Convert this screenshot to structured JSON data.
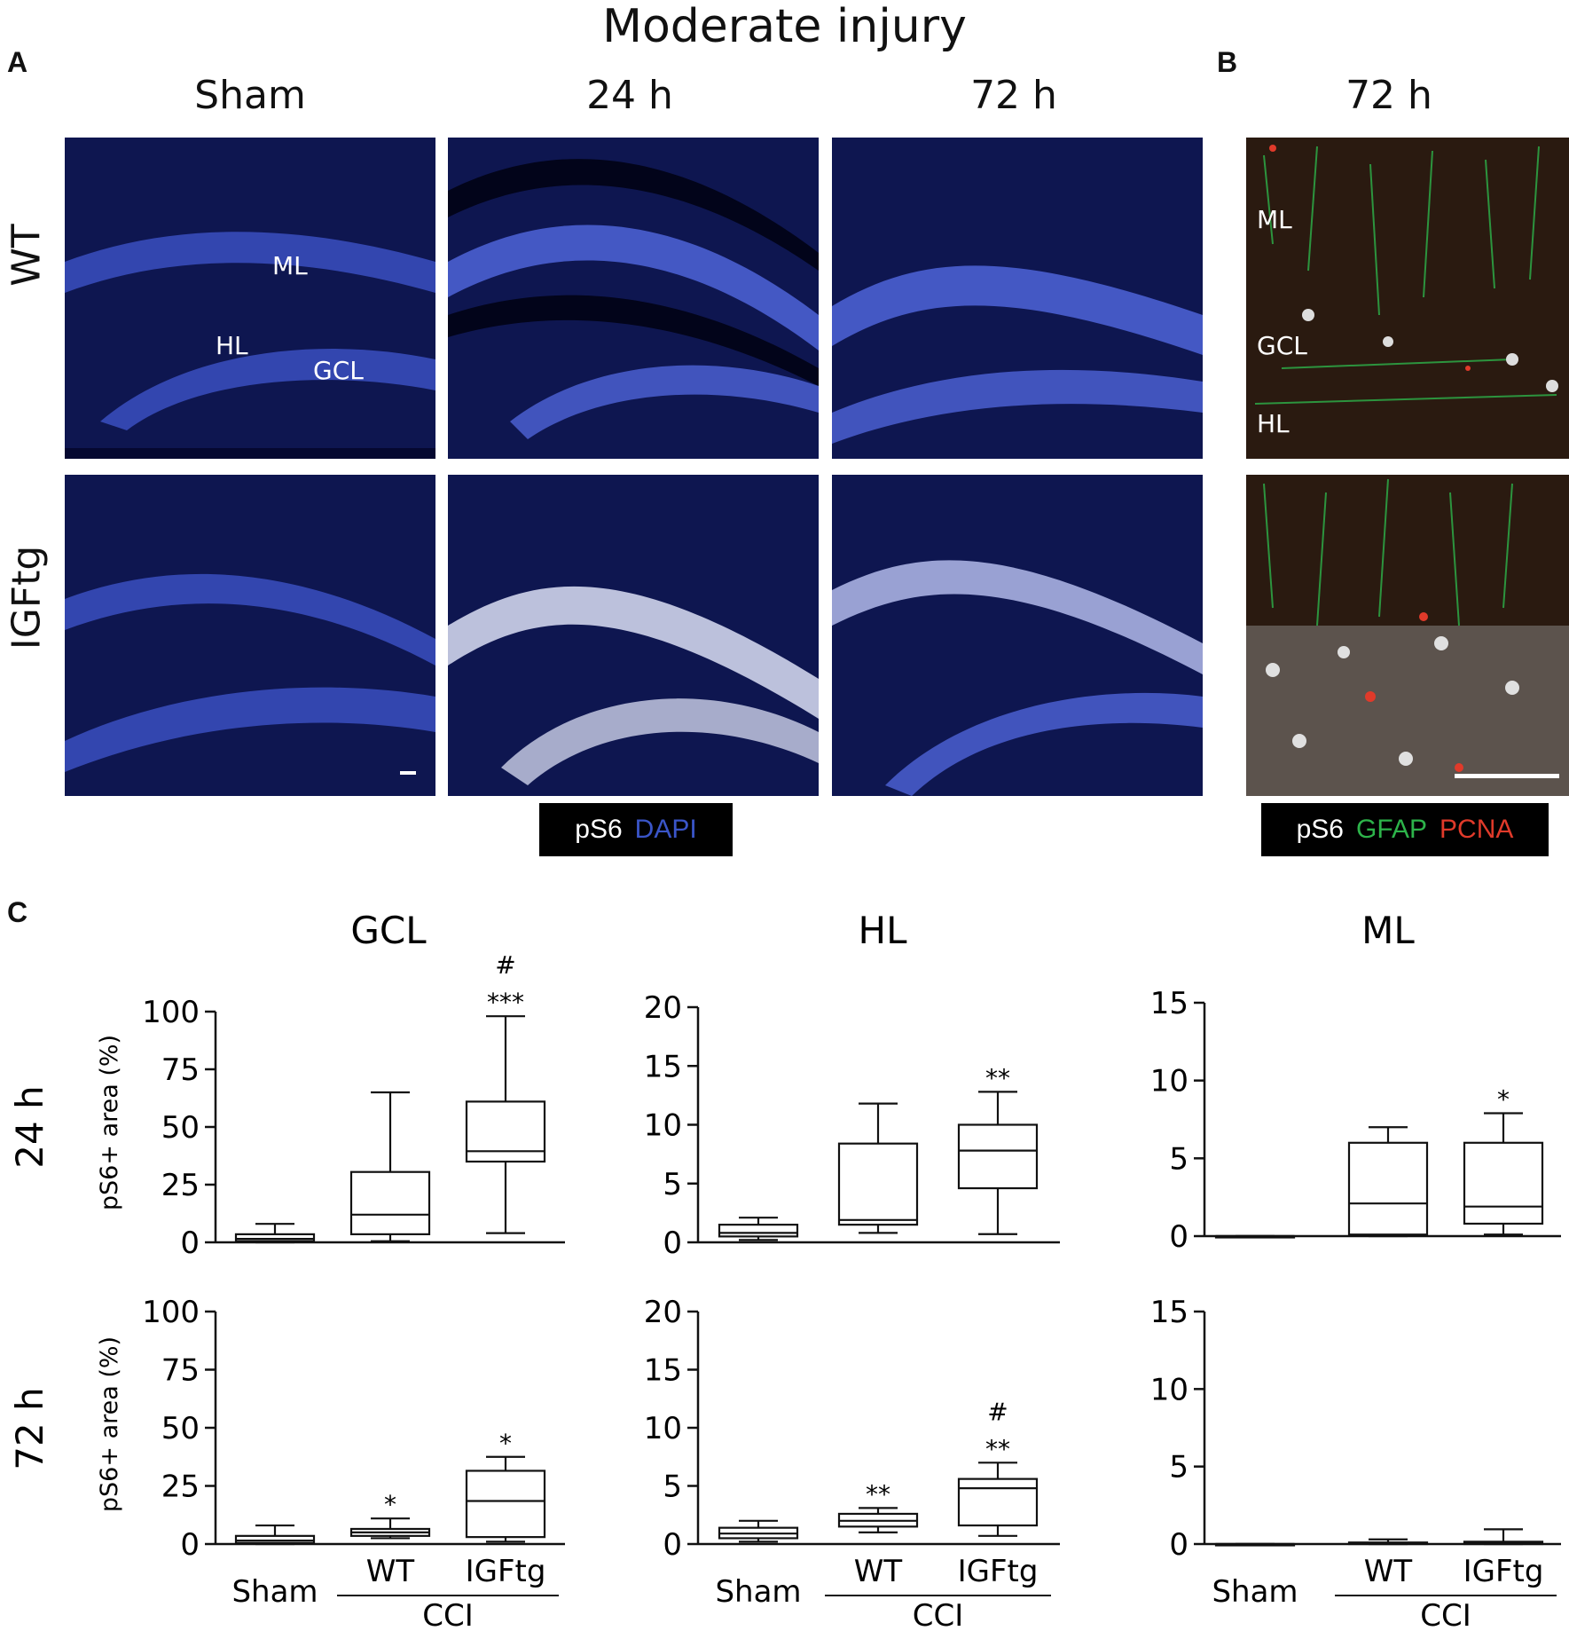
{
  "figure": {
    "title": "Moderate injury",
    "panel_a": {
      "letter": "A",
      "columns": [
        "Sham",
        "24 h",
        "72 h"
      ],
      "rows": [
        "WT",
        "IGFtg"
      ],
      "region_labels": {
        "ml": "ML",
        "hl": "HL",
        "gcl": "GCL"
      },
      "legend": {
        "stain1": "pS6",
        "stain2": "DAPI"
      }
    },
    "panel_b": {
      "letter": "B",
      "column": "72 h",
      "region_labels": {
        "ml": "ML",
        "gcl": "GCL",
        "hl": "HL"
      },
      "legend": {
        "stain1": "pS6",
        "stain2": "GFAP",
        "stain3": "PCNA"
      }
    },
    "panel_c": {
      "letter": "C",
      "column_titles": [
        "GCL",
        "HL",
        "ML"
      ],
      "row_labels": [
        "24 h",
        "72 h"
      ],
      "ylabel": "pS6+ area (%)",
      "x_categories": [
        "Sham",
        "WT",
        "IGFtg"
      ],
      "group_label": "CCI"
    },
    "colors": {
      "dapi_blue": "#2a3a9a",
      "gfap_green": "#2db34a",
      "pcna_red": "#e03a2a",
      "ps6_white": "#ffffff"
    }
  },
  "chart_data": [
    {
      "type": "box",
      "region": "GCL",
      "time": "24 h",
      "ylabel": "pS6+ area (%)",
      "ylim": [
        0,
        100
      ],
      "yticks": [
        0,
        25,
        50,
        75,
        100
      ],
      "categories": [
        "Sham",
        "WT",
        "IGFtg"
      ],
      "boxes": [
        {
          "min": 0,
          "q1": 0.5,
          "median": 1.5,
          "q3": 3.5,
          "max": 8
        },
        {
          "min": 0.5,
          "q1": 3.5,
          "median": 12,
          "q3": 30.5,
          "max": 65
        },
        {
          "min": 4,
          "q1": 35,
          "median": 39.5,
          "q3": 61,
          "max": 98
        }
      ],
      "annotations": [
        {
          "category": "IGFtg",
          "lines": [
            "#",
            "***"
          ]
        }
      ]
    },
    {
      "type": "box",
      "region": "HL",
      "time": "24 h",
      "ylim": [
        0,
        20
      ],
      "yticks": [
        0,
        5,
        10,
        15,
        20
      ],
      "categories": [
        "Sham",
        "WT",
        "IGFtg"
      ],
      "boxes": [
        {
          "min": 0.2,
          "q1": 0.5,
          "median": 0.8,
          "q3": 1.5,
          "max": 2.1
        },
        {
          "min": 0.8,
          "q1": 1.5,
          "median": 1.9,
          "q3": 8.4,
          "max": 11.8
        },
        {
          "min": 0.7,
          "q1": 4.6,
          "median": 7.8,
          "q3": 10,
          "max": 12.8
        }
      ],
      "annotations": [
        {
          "category": "IGFtg",
          "lines": [
            "**"
          ]
        }
      ]
    },
    {
      "type": "box",
      "region": "ML",
      "time": "24 h",
      "ylim": [
        0,
        15
      ],
      "yticks": [
        0,
        5,
        10,
        15
      ],
      "categories": [
        "Sham",
        "WT",
        "IGFtg"
      ],
      "boxes": [
        {
          "min": 0,
          "q1": 0,
          "median": 0,
          "q3": 0,
          "max": 0
        },
        {
          "min": 0,
          "q1": 0.1,
          "median": 2.1,
          "q3": 6,
          "max": 7
        },
        {
          "min": 0.1,
          "q1": 0.8,
          "median": 1.9,
          "q3": 6,
          "max": 7.9
        }
      ],
      "annotations": [
        {
          "category": "IGFtg",
          "lines": [
            "*"
          ]
        }
      ]
    },
    {
      "type": "box",
      "region": "GCL",
      "time": "72 h",
      "ylabel": "pS6+ area (%)",
      "ylim": [
        0,
        100
      ],
      "yticks": [
        0,
        25,
        50,
        75,
        100
      ],
      "categories": [
        "Sham",
        "WT",
        "IGFtg"
      ],
      "boxes": [
        {
          "min": 0,
          "q1": 0.5,
          "median": 1.5,
          "q3": 3.5,
          "max": 8
        },
        {
          "min": 2.5,
          "q1": 3.5,
          "median": 5,
          "q3": 6.5,
          "max": 11
        },
        {
          "min": 1,
          "q1": 3,
          "median": 18.5,
          "q3": 31.5,
          "max": 37.5
        }
      ],
      "annotations": [
        {
          "category": "WT",
          "lines": [
            "*"
          ]
        },
        {
          "category": "IGFtg",
          "lines": [
            "*"
          ]
        }
      ]
    },
    {
      "type": "box",
      "region": "HL",
      "time": "72 h",
      "ylim": [
        0,
        20
      ],
      "yticks": [
        0,
        5,
        10,
        15,
        20
      ],
      "categories": [
        "Sham",
        "WT",
        "IGFtg"
      ],
      "boxes": [
        {
          "min": 0.2,
          "q1": 0.5,
          "median": 0.9,
          "q3": 1.4,
          "max": 2
        },
        {
          "min": 1,
          "q1": 1.5,
          "median": 2,
          "q3": 2.6,
          "max": 3.1
        },
        {
          "min": 0.7,
          "q1": 1.6,
          "median": 4.8,
          "q3": 5.6,
          "max": 7
        }
      ],
      "annotations": [
        {
          "category": "WT",
          "lines": [
            "**"
          ]
        },
        {
          "category": "IGFtg",
          "lines": [
            "#",
            "**"
          ]
        }
      ]
    },
    {
      "type": "box",
      "region": "ML",
      "time": "72 h",
      "ylim": [
        0,
        15
      ],
      "yticks": [
        0,
        5,
        10,
        15
      ],
      "categories": [
        "Sham",
        "WT",
        "IGFtg"
      ],
      "boxes": [
        {
          "min": 0,
          "q1": 0,
          "median": 0,
          "q3": 0,
          "max": 0
        },
        {
          "min": 0,
          "q1": 0,
          "median": 0.05,
          "q3": 0.1,
          "max": 0.3
        },
        {
          "min": 0,
          "q1": 0,
          "median": 0.05,
          "q3": 0.15,
          "max": 0.95
        }
      ],
      "annotations": []
    }
  ]
}
